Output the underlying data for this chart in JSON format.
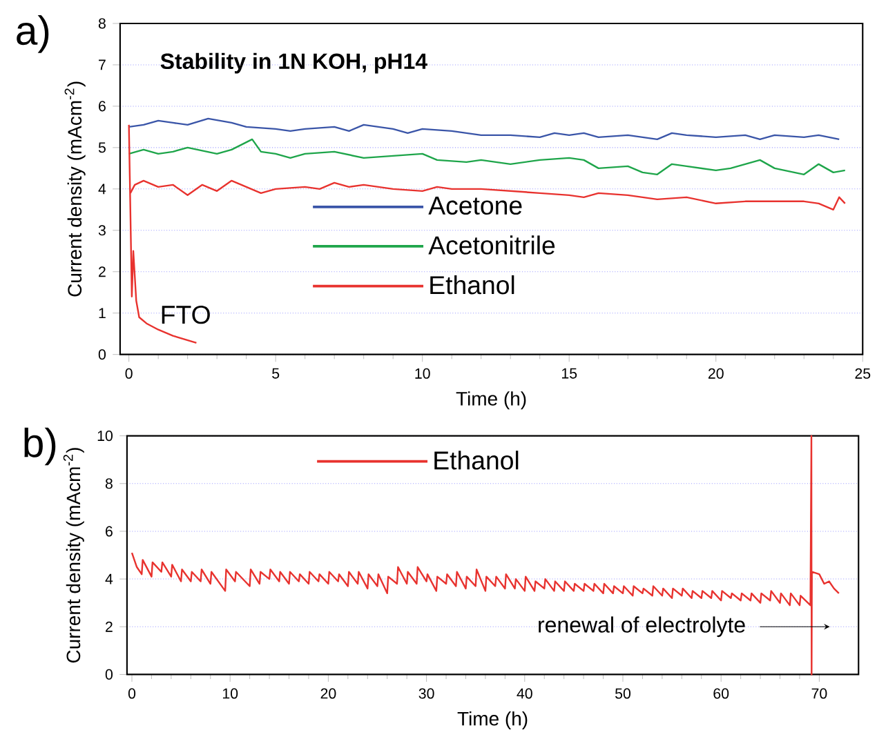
{
  "chart_data": [
    {
      "type": "line",
      "title": "Stability in 1N KOH, pH14",
      "xlabel": "Time (h)",
      "ylabel": "Current density (mAcm$^{-2}$)",
      "xlim": [
        -0.3,
        25
      ],
      "xticks": [
        0,
        5,
        10,
        15,
        20,
        25
      ],
      "ylim": [
        0,
        8
      ],
      "yticks": [
        0,
        1,
        2,
        3,
        4,
        5,
        6,
        7,
        8
      ],
      "grid": "y",
      "legend": "center",
      "line_style": "solid",
      "marker": "none",
      "annotations": [
        "a)",
        "FTO"
      ],
      "series": [
        {
          "name": "Acetone",
          "color": "#3a55a8",
          "x": [
            0,
            0.5,
            1,
            1.5,
            2,
            2.7,
            3.5,
            4,
            5,
            5.5,
            6,
            7,
            7.5,
            8,
            9,
            9.5,
            10,
            11,
            12,
            13,
            14,
            14.5,
            15,
            15.5,
            16,
            17,
            18,
            18.5,
            19,
            20,
            21,
            21.5,
            22,
            23,
            23.5,
            24.2
          ],
          "values": [
            5.5,
            5.55,
            5.65,
            5.6,
            5.55,
            5.7,
            5.6,
            5.5,
            5.45,
            5.4,
            5.45,
            5.5,
            5.4,
            5.55,
            5.45,
            5.35,
            5.45,
            5.4,
            5.3,
            5.3,
            5.25,
            5.35,
            5.3,
            5.35,
            5.25,
            5.3,
            5.2,
            5.35,
            5.3,
            5.25,
            5.3,
            5.2,
            5.3,
            5.25,
            5.3,
            5.2
          ]
        },
        {
          "name": "Acetonitrile",
          "color": "#1ea54a",
          "x": [
            0,
            0.5,
            1,
            1.5,
            2,
            3,
            3.5,
            4.2,
            4.5,
            5,
            5.5,
            6,
            7,
            8,
            9,
            10,
            10.5,
            11.5,
            12,
            13,
            14,
            15,
            15.5,
            16,
            17,
            17.5,
            18,
            18.5,
            19,
            20,
            20.5,
            21,
            21.5,
            22,
            23,
            23.5,
            24,
            24.4
          ],
          "values": [
            4.85,
            4.95,
            4.85,
            4.9,
            5.0,
            4.85,
            4.95,
            5.2,
            4.9,
            4.85,
            4.75,
            4.85,
            4.9,
            4.75,
            4.8,
            4.85,
            4.7,
            4.65,
            4.7,
            4.6,
            4.7,
            4.75,
            4.7,
            4.5,
            4.55,
            4.4,
            4.35,
            4.6,
            4.55,
            4.45,
            4.5,
            4.6,
            4.7,
            4.5,
            4.35,
            4.6,
            4.4,
            4.45
          ]
        },
        {
          "name": "Ethanol",
          "color": "#e8322e",
          "x": [
            0.05,
            0.2,
            0.5,
            1,
            1.5,
            2,
            2.5,
            3,
            3.5,
            4,
            4.5,
            5,
            6,
            6.5,
            7,
            7.5,
            8,
            9,
            10,
            10.5,
            11,
            12,
            13,
            14,
            15,
            15.5,
            16,
            17,
            18,
            19,
            20,
            21,
            22,
            23,
            23.5,
            24,
            24.2,
            24.4
          ],
          "values": [
            3.9,
            4.1,
            4.2,
            4.05,
            4.1,
            3.85,
            4.1,
            3.95,
            4.2,
            4.05,
            3.9,
            4.0,
            4.05,
            4.0,
            4.15,
            4.05,
            4.1,
            4.0,
            3.95,
            4.05,
            4.0,
            4.0,
            3.95,
            3.9,
            3.85,
            3.8,
            3.9,
            3.85,
            3.75,
            3.8,
            3.65,
            3.7,
            3.7,
            3.7,
            3.65,
            3.5,
            3.8,
            3.65
          ]
        },
        {
          "color": "#e8322e",
          "x": [
            0,
            0.05,
            0.1,
            0.15,
            0.25,
            0.35,
            0.6,
            1,
            1.5,
            2.3
          ],
          "values": [
            5.55,
            3.5,
            1.4,
            2.5,
            1.3,
            0.9,
            0.75,
            0.6,
            0.45,
            0.28
          ]
        }
      ]
    },
    {
      "type": "line",
      "xlabel": "Time (h)",
      "ylabel": "Current density (mAcm$^{-2}$)",
      "xlim": [
        -0.5,
        74
      ],
      "xticks": [
        0,
        10,
        20,
        30,
        40,
        50,
        60,
        70
      ],
      "ylim": [
        0,
        10
      ],
      "yticks": [
        0,
        2,
        4,
        6,
        8,
        10
      ],
      "grid": "y",
      "legend": "top",
      "line_style": "solid",
      "marker": "none",
      "annotations": [
        "b)",
        "renewal of electrolyte"
      ],
      "series": [
        {
          "name": "Ethanol",
          "color": "#e8322e",
          "x": [
            0,
            0.5,
            1,
            1.1,
            2,
            2.1,
            3,
            3.1,
            4,
            4.1,
            5,
            5.1,
            6,
            6.1,
            7,
            7.1,
            8,
            8.1,
            9.5,
            9.6,
            10.5,
            10.6,
            12,
            12.1,
            13,
            13.1,
            14,
            14.1,
            15,
            15.1,
            16,
            16.1,
            17,
            17.1,
            18,
            18.1,
            19,
            19.1,
            20,
            20.1,
            21,
            21.1,
            22,
            22.1,
            23,
            23.1,
            24,
            24.1,
            25,
            25.1,
            26,
            26.1,
            27,
            27.1,
            28,
            28.1,
            29,
            29.1,
            30,
            30.1,
            31,
            31.1,
            32,
            32.1,
            33,
            33.1,
            34,
            34.1,
            35,
            35.1,
            36,
            36.1,
            37,
            37.1,
            38,
            38.1,
            39,
            39.1,
            40,
            40.1,
            41,
            41.1,
            42,
            42.1,
            43,
            43.1,
            44,
            44.1,
            45,
            45.1,
            46,
            46.1,
            47,
            47.1,
            48,
            48.1,
            49,
            49.1,
            50,
            50.1,
            51,
            51.1,
            52,
            52.1,
            53,
            53.1,
            54,
            54.1,
            55,
            55.1,
            56,
            56.1,
            57,
            57.1,
            58,
            58.1,
            59,
            59.1,
            60,
            60.1,
            61,
            61.1,
            62,
            62.1,
            63,
            63.1,
            64,
            64.1,
            65,
            65.1,
            66,
            66.1,
            67,
            67.1,
            68,
            68.1,
            69.1,
            69.2,
            69.22,
            69.25,
            70,
            70.5,
            71,
            71.5,
            72
          ],
          "values": [
            5.1,
            4.5,
            4.2,
            4.8,
            4.1,
            4.7,
            4.3,
            4.7,
            4.1,
            4.6,
            3.9,
            4.4,
            3.9,
            4.3,
            3.9,
            4.4,
            3.8,
            4.3,
            3.5,
            4.4,
            3.9,
            4.3,
            3.7,
            4.4,
            3.8,
            4.3,
            4.0,
            4.4,
            3.9,
            4.3,
            3.8,
            4.3,
            3.9,
            4.2,
            3.8,
            4.3,
            3.9,
            4.2,
            3.8,
            4.3,
            3.9,
            4.2,
            3.7,
            4.3,
            3.8,
            4.3,
            3.6,
            4.2,
            3.7,
            4.2,
            3.4,
            4.1,
            3.8,
            4.5,
            3.8,
            4.3,
            3.8,
            4.5,
            3.9,
            4.2,
            3.5,
            4.1,
            3.8,
            4.2,
            3.7,
            4.3,
            3.6,
            4.1,
            3.7,
            4.4,
            3.5,
            4.1,
            3.7,
            4.1,
            3.6,
            4.2,
            3.6,
            4.0,
            3.5,
            4.1,
            3.5,
            3.9,
            3.6,
            4.0,
            3.5,
            3.9,
            3.5,
            3.9,
            3.5,
            3.8,
            3.5,
            3.8,
            3.5,
            3.8,
            3.4,
            3.8,
            3.4,
            3.7,
            3.4,
            3.7,
            3.3,
            3.7,
            3.4,
            3.6,
            3.3,
            3.7,
            3.3,
            3.6,
            3.2,
            3.6,
            3.3,
            3.6,
            3.2,
            3.5,
            3.2,
            3.5,
            3.2,
            3.5,
            3.1,
            3.5,
            3.2,
            3.4,
            3.1,
            3.4,
            3.1,
            3.4,
            3.0,
            3.4,
            3.1,
            3.5,
            3.0,
            3.4,
            2.9,
            3.4,
            2.9,
            3.3,
            2.9,
            10.0,
            0,
            4.3,
            4.2,
            3.8,
            3.9,
            3.6,
            3.4
          ]
        }
      ]
    }
  ]
}
